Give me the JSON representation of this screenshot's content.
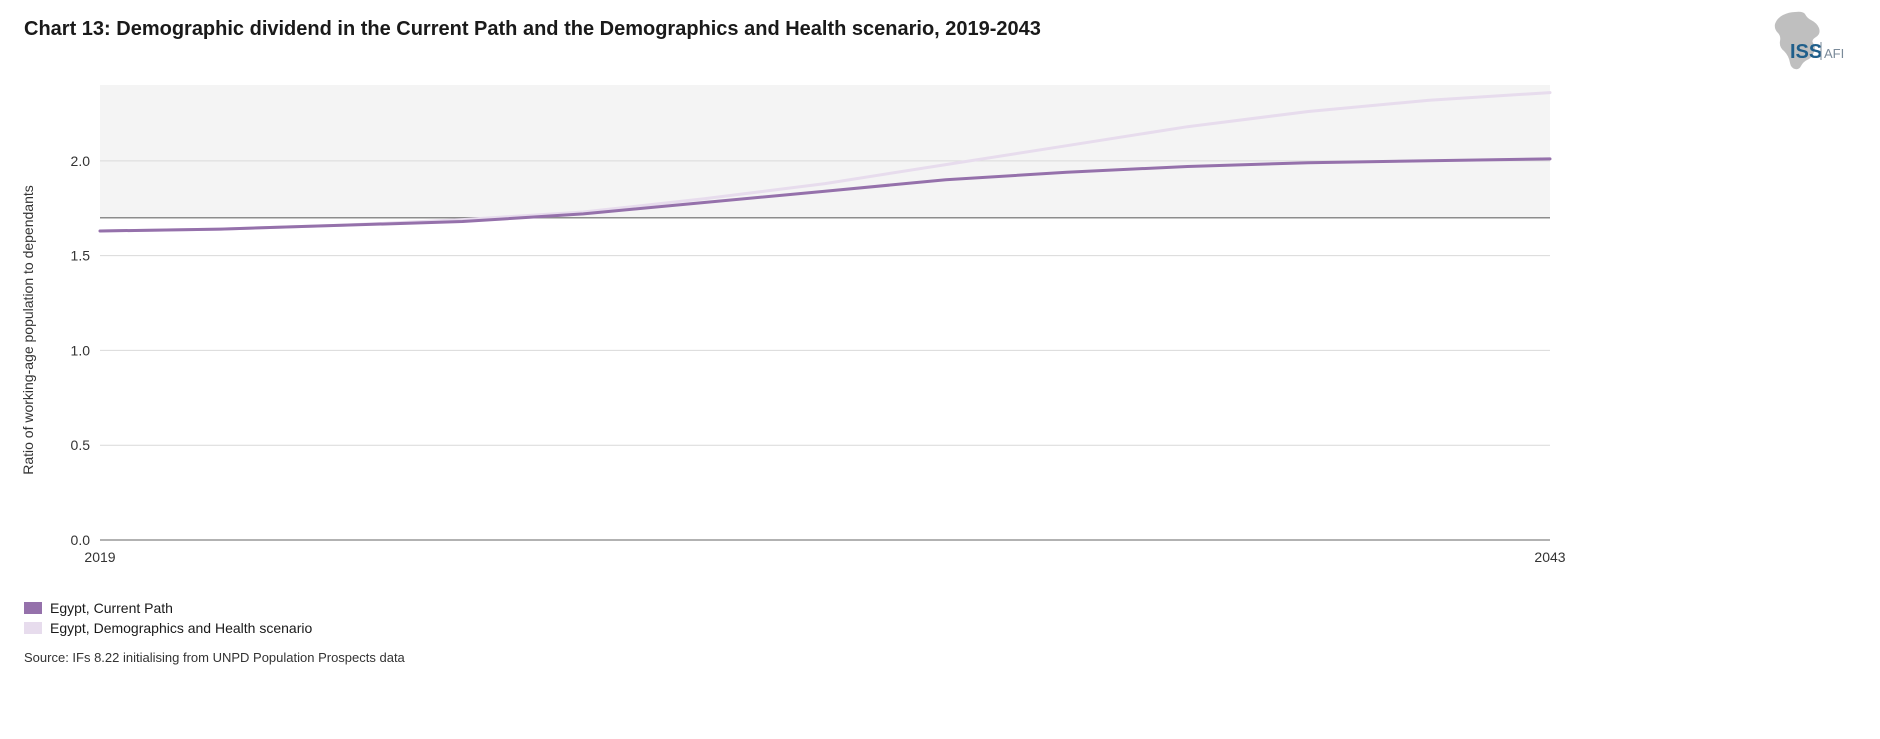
{
  "title": "Chart 13: Demographic dividend in the Current Path and the Demographics and Health scenario, 2019-2043",
  "logo": {
    "text_main": "ISS",
    "text_sub": "AFI",
    "silhouette_color": "#bfbfbf",
    "main_color": "#1f5f8b",
    "sub_color": "#7a8a99"
  },
  "chart": {
    "type": "line",
    "ylabel": "Ratio of working-age population to dependants",
    "background_color": "#f4f4f4",
    "page_background": "#ffffff",
    "grid_color": "#d9d9d9",
    "axis_color": "#666666",
    "reference_line_color": "#8c8c8c",
    "tick_fontsize": 14,
    "label_fontsize": 14,
    "title_fontsize": 20,
    "line_width": 3,
    "xlim": [
      2019,
      2043
    ],
    "ylim": [
      0.0,
      2.4
    ],
    "yticks": [
      0.0,
      0.5,
      1.0,
      1.5,
      2.0
    ],
    "xticks_shown": [
      2019,
      2043
    ],
    "reference_y": 1.7,
    "plot_band_y": [
      1.7,
      2.4
    ],
    "series": [
      {
        "name": "Egypt, Current Path",
        "color": "#9571ab",
        "x": [
          2019,
          2021,
          2023,
          2025,
          2027,
          2029,
          2031,
          2033,
          2035,
          2037,
          2039,
          2041,
          2043
        ],
        "y": [
          1.63,
          1.64,
          1.66,
          1.68,
          1.72,
          1.78,
          1.84,
          1.9,
          1.94,
          1.97,
          1.99,
          2.0,
          2.01
        ]
      },
      {
        "name": "Egypt, Demographics and Health scenario",
        "color": "#e7dced",
        "x": [
          2019,
          2021,
          2023,
          2025,
          2027,
          2029,
          2031,
          2033,
          2035,
          2037,
          2039,
          2041,
          2043
        ],
        "y": [
          1.63,
          1.64,
          1.66,
          1.69,
          1.73,
          1.8,
          1.88,
          1.98,
          2.08,
          2.18,
          2.26,
          2.32,
          2.36
        ]
      }
    ]
  },
  "legend_items": [
    {
      "label": "Egypt, Current Path",
      "color": "#9571ab"
    },
    {
      "label": "Egypt, Demographics and Health scenario",
      "color": "#e7dced"
    }
  ],
  "source": "Source: IFs 8.22 initialising from UNPD Population Prospects data"
}
